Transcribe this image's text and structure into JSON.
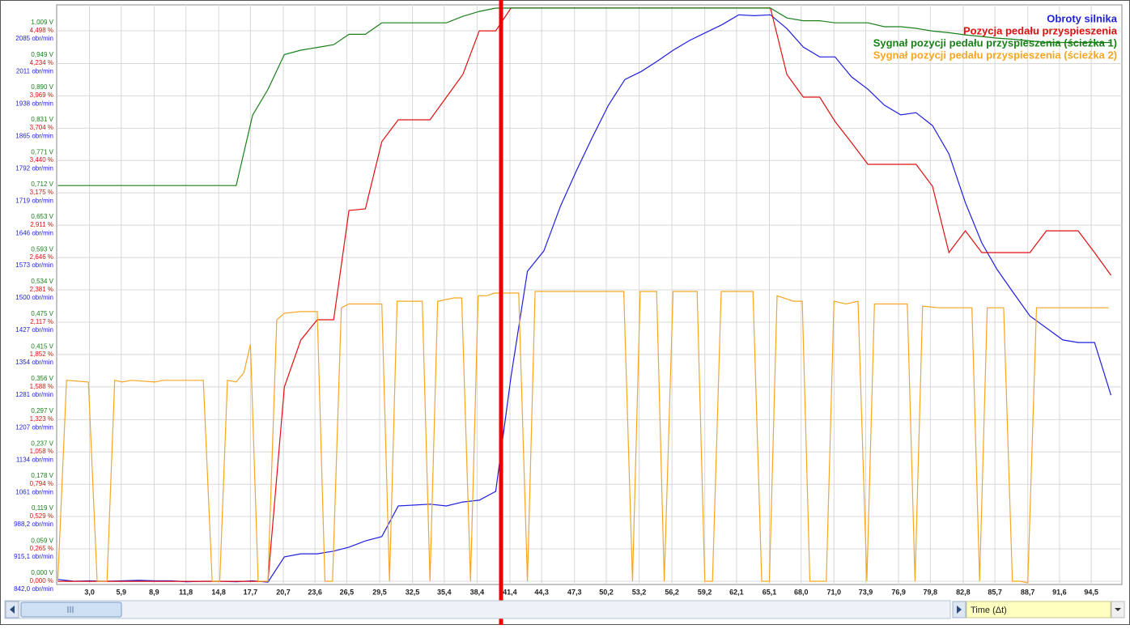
{
  "chart_data": {
    "type": "line",
    "xlabel": "Time (Δt)",
    "xlim": [
      0,
      97.3
    ],
    "xticks": [
      {
        "value": 3.0,
        "label": "3,0"
      },
      {
        "value": 5.9,
        "label": "5,9"
      },
      {
        "value": 8.9,
        "label": "8,9"
      },
      {
        "value": 11.8,
        "label": "11,8"
      },
      {
        "value": 14.8,
        "label": "14,8"
      },
      {
        "value": 17.7,
        "label": "17,7"
      },
      {
        "value": 20.7,
        "label": "20,7"
      },
      {
        "value": 23.6,
        "label": "23,6"
      },
      {
        "value": 26.5,
        "label": "26,5"
      },
      {
        "value": 29.5,
        "label": "29,5"
      },
      {
        "value": 32.5,
        "label": "32,5"
      },
      {
        "value": 35.4,
        "label": "35,4"
      },
      {
        "value": 38.4,
        "label": "38,4"
      },
      {
        "value": 41.4,
        "label": "41,4"
      },
      {
        "value": 44.3,
        "label": "44,3"
      },
      {
        "value": 47.3,
        "label": "47,3"
      },
      {
        "value": 50.2,
        "label": "50,2"
      },
      {
        "value": 53.2,
        "label": "53,2"
      },
      {
        "value": 56.2,
        "label": "56,2"
      },
      {
        "value": 59.2,
        "label": "59,2"
      },
      {
        "value": 62.1,
        "label": "62,1"
      },
      {
        "value": 65.1,
        "label": "65,1"
      },
      {
        "value": 68.0,
        "label": "68,0"
      },
      {
        "value": 71.0,
        "label": "71,0"
      },
      {
        "value": 73.9,
        "label": "73,9"
      },
      {
        "value": 76.9,
        "label": "76,9"
      },
      {
        "value": 79.8,
        "label": "79,8"
      },
      {
        "value": 82.8,
        "label": "82,8"
      },
      {
        "value": 85.7,
        "label": "85,7"
      },
      {
        "value": 88.7,
        "label": "88,7"
      },
      {
        "value": 91.6,
        "label": "91,6"
      },
      {
        "value": 94.5,
        "label": "94,5"
      }
    ],
    "ylim": [
      834.7,
      2143.5
    ],
    "yticks": [
      {
        "value": 842.0,
        "label": "842,0 obr/min"
      },
      {
        "value": 915.1,
        "label": "915,1 obr/min"
      },
      {
        "value": 988.2,
        "label": "988,2 obr/min"
      },
      {
        "value": 1061,
        "label": "1061 obr/min"
      },
      {
        "value": 1134,
        "label": "1134 obr/min"
      },
      {
        "value": 1207,
        "label": "1207 obr/min"
      },
      {
        "value": 1281,
        "label": "1281 obr/min"
      },
      {
        "value": 1354,
        "label": "1354 obr/min"
      },
      {
        "value": 1427,
        "label": "1427 obr/min"
      },
      {
        "value": 1500,
        "label": "1500 obr/min"
      },
      {
        "value": 1573,
        "label": "1573 obr/min"
      },
      {
        "value": 1646,
        "label": "1646 obr/min"
      },
      {
        "value": 1719,
        "label": "1719 obr/min"
      },
      {
        "value": 1792,
        "label": "1792 obr/min"
      },
      {
        "value": 1865,
        "label": "1865 obr/min"
      },
      {
        "value": 1938,
        "label": "1938 obr/min"
      },
      {
        "value": 2011,
        "label": "2011 obr/min"
      },
      {
        "value": 2085,
        "label": "2085 obr/min"
      }
    ],
    "y2lim": [
      -0.026,
      4.71
    ],
    "y2ticks": [
      {
        "value": 0.0,
        "label": "0,000 %"
      },
      {
        "value": 0.265,
        "label": "0,265 %"
      },
      {
        "value": 0.529,
        "label": "0,529 %"
      },
      {
        "value": 0.794,
        "label": "0,794 %"
      },
      {
        "value": 1.058,
        "label": "1,058 %"
      },
      {
        "value": 1.323,
        "label": "1,323 %"
      },
      {
        "value": 1.588,
        "label": "1,588 %"
      },
      {
        "value": 1.852,
        "label": "1,852 %"
      },
      {
        "value": 2.117,
        "label": "2,117 %"
      },
      {
        "value": 2.381,
        "label": "2,381 %"
      },
      {
        "value": 2.646,
        "label": "2,646 %"
      },
      {
        "value": 2.911,
        "label": "2,911 %"
      },
      {
        "value": 3.175,
        "label": "3,175 %"
      },
      {
        "value": 3.44,
        "label": "3,440 %"
      },
      {
        "value": 3.704,
        "label": "3,704 %"
      },
      {
        "value": 3.969,
        "label": "3,969 %"
      },
      {
        "value": 4.234,
        "label": "4,234 %"
      },
      {
        "value": 4.498,
        "label": "4,498 %"
      }
    ],
    "y3lim": [
      -0.006,
      1.056
    ],
    "y3ticks": [
      {
        "value": 0.0,
        "label": "0,000 V"
      },
      {
        "value": 0.059,
        "label": "0,059 V"
      },
      {
        "value": 0.119,
        "label": "0,119 V"
      },
      {
        "value": 0.178,
        "label": "0,178 V"
      },
      {
        "value": 0.237,
        "label": "0,237 V"
      },
      {
        "value": 0.297,
        "label": "0,297 V"
      },
      {
        "value": 0.356,
        "label": "0,356 V"
      },
      {
        "value": 0.415,
        "label": "0,415 V"
      },
      {
        "value": 0.475,
        "label": "0,475 V"
      },
      {
        "value": 0.534,
        "label": "0,534 V"
      },
      {
        "value": 0.593,
        "label": "0,593 V"
      },
      {
        "value": 0.653,
        "label": "0,653 V"
      },
      {
        "value": 0.712,
        "label": "0,712 V"
      },
      {
        "value": 0.771,
        "label": "0,771 V"
      },
      {
        "value": 0.831,
        "label": "0,831 V"
      },
      {
        "value": 0.89,
        "label": "0,890 V"
      },
      {
        "value": 0.949,
        "label": "0,949 V"
      },
      {
        "value": 1.009,
        "label": "1,009 V"
      }
    ],
    "grid": true,
    "legend": "upper right",
    "x": [
      0.1,
      1.6,
      3.1,
      4.5,
      6.0,
      7.5,
      9.0,
      10.5,
      11.9,
      13.4,
      14.9,
      16.4,
      17.9,
      19.3,
      20.8,
      22.3,
      23.8,
      25.3,
      26.7,
      28.2,
      29.7,
      31.2,
      32.7,
      34.1,
      35.6,
      37.1,
      38.6,
      40.1,
      41.5,
      43.0,
      44.5,
      46.0,
      47.5,
      48.9,
      50.4,
      51.9,
      53.4,
      54.9,
      56.3,
      57.8,
      59.3,
      60.8,
      62.3,
      63.7,
      65.2,
      66.7,
      68.2,
      69.7,
      71.1,
      72.6,
      74.1,
      75.6,
      77.1,
      78.5,
      80.0,
      81.5,
      83.0,
      84.5,
      85.9,
      87.4,
      88.9,
      90.4,
      91.9,
      93.3,
      94.8,
      96.3
    ],
    "series": [
      {
        "name": "Obroty silnika",
        "color": "#1f1fe0",
        "axis": "y",
        "values": [
          846,
          842,
          843,
          842,
          843,
          844,
          843,
          843,
          841,
          842,
          842,
          841,
          843,
          840,
          897,
          904,
          904,
          910,
          919,
          933,
          943,
          1012,
          1014,
          1016,
          1012,
          1021,
          1025,
          1045,
          1304,
          1542,
          1588,
          1688,
          1770,
          1843,
          1917,
          1975,
          1993,
          2017,
          2041,
          2063,
          2081,
          2099,
          2121,
          2119,
          2121,
          2090,
          2048,
          2026,
          2026,
          1981,
          1953,
          1917,
          1895,
          1900,
          1871,
          1807,
          1697,
          1606,
          1546,
          1493,
          1441,
          1414,
          1387,
          1381,
          1381,
          1262
        ]
      },
      {
        "name": "Pozycja pedału przyspieszenia",
        "color": "#e01010",
        "axis": "y2",
        "values": [
          0,
          0,
          0,
          0,
          0,
          0,
          0,
          0,
          0,
          0,
          0,
          0,
          0,
          0,
          1.588,
          1.971,
          2.137,
          2.137,
          3.03,
          3.043,
          3.592,
          3.771,
          3.771,
          3.771,
          3.956,
          4.141,
          4.498,
          4.498,
          4.684,
          4.684,
          4.684,
          4.684,
          4.684,
          4.684,
          4.684,
          4.684,
          4.684,
          4.684,
          4.684,
          4.684,
          4.684,
          4.684,
          4.684,
          4.684,
          4.684,
          4.141,
          3.956,
          3.956,
          3.757,
          3.585,
          3.407,
          3.407,
          3.407,
          3.407,
          3.228,
          2.686,
          2.864,
          2.686,
          2.686,
          2.686,
          2.686,
          2.864,
          2.864,
          2.864,
          2.686,
          2.5
        ]
      },
      {
        "name": "Sygnał pozycji pedału przyspieszenia (ścieżka 1)",
        "color": "#1a801a",
        "axis": "y3",
        "values": [
          0.725,
          0.725,
          0.725,
          0.725,
          0.725,
          0.725,
          0.725,
          0.725,
          0.725,
          0.725,
          0.725,
          0.725,
          0.854,
          0.901,
          0.965,
          0.973,
          0.978,
          0.983,
          1.002,
          1.002,
          1.023,
          1.023,
          1.023,
          1.023,
          1.023,
          1.035,
          1.044,
          1.05,
          1.05,
          1.05,
          1.05,
          1.05,
          1.05,
          1.05,
          1.05,
          1.05,
          1.05,
          1.05,
          1.05,
          1.05,
          1.05,
          1.05,
          1.05,
          1.05,
          1.05,
          1.032,
          1.027,
          1.027,
          1.023,
          1.023,
          1.023,
          1.016,
          1.016,
          1.013,
          1.008,
          1.005,
          1.001,
          0.998,
          0.995,
          0.993,
          0.99,
          0.987,
          0.987,
          0.987,
          0.987,
          0.987
        ]
      },
      {
        "name": "Sygnał pozycji pedału przyspieszenia (ścieżka 2)",
        "color": "#f5a623",
        "axis": "y3",
        "x": [
          0.1,
          0.9,
          2.9,
          3.7,
          4.6,
          5.3,
          6.0,
          6.8,
          9.0,
          9.7,
          13.4,
          14.2,
          14.9,
          15.6,
          16.4,
          17.1,
          17.7,
          18.4,
          19.3,
          20.1,
          20.8,
          22.3,
          23.8,
          24.5,
          25.2,
          26.0,
          26.7,
          29.7,
          30.4,
          31.1,
          33.4,
          34.1,
          34.8,
          36.3,
          37.0,
          37.8,
          38.5,
          39.3,
          40.0,
          42.2,
          43.0,
          43.7,
          51.8,
          52.6,
          53.3,
          54.8,
          55.5,
          56.3,
          58.5,
          59.2,
          59.9,
          60.7,
          63.6,
          64.4,
          65.1,
          65.8,
          67.3,
          68.1,
          68.8,
          70.3,
          71.0,
          72.1,
          73.2,
          74.0,
          74.7,
          77.7,
          78.4,
          79.1,
          80.6,
          83.6,
          84.3,
          85.0,
          86.5,
          87.3,
          88.0,
          88.7,
          89.5,
          96.1
        ],
        "values": [
          0,
          0.368,
          0.365,
          0,
          0,
          0.368,
          0.365,
          0.368,
          0.365,
          0.368,
          0.368,
          0,
          0,
          0.368,
          0.365,
          0.382,
          0.434,
          0,
          0,
          0.479,
          0.491,
          0.494,
          0.494,
          0,
          0,
          0.501,
          0.508,
          0.508,
          0,
          0.513,
          0.513,
          0,
          0.513,
          0.519,
          0.519,
          0,
          0.523,
          0.523,
          0.528,
          0.528,
          0,
          0.531,
          0.531,
          0,
          0.531,
          0.531,
          0,
          0.531,
          0.531,
          0,
          0,
          0.531,
          0.531,
          0,
          0,
          0.523,
          0.513,
          0.513,
          0,
          0,
          0.513,
          0.508,
          0.513,
          0,
          0.508,
          0.508,
          0,
          0.504,
          0.501,
          0.501,
          0,
          0.501,
          0.501,
          0,
          0,
          -0.003,
          0.501,
          0.501
        ]
      }
    ]
  }
}
